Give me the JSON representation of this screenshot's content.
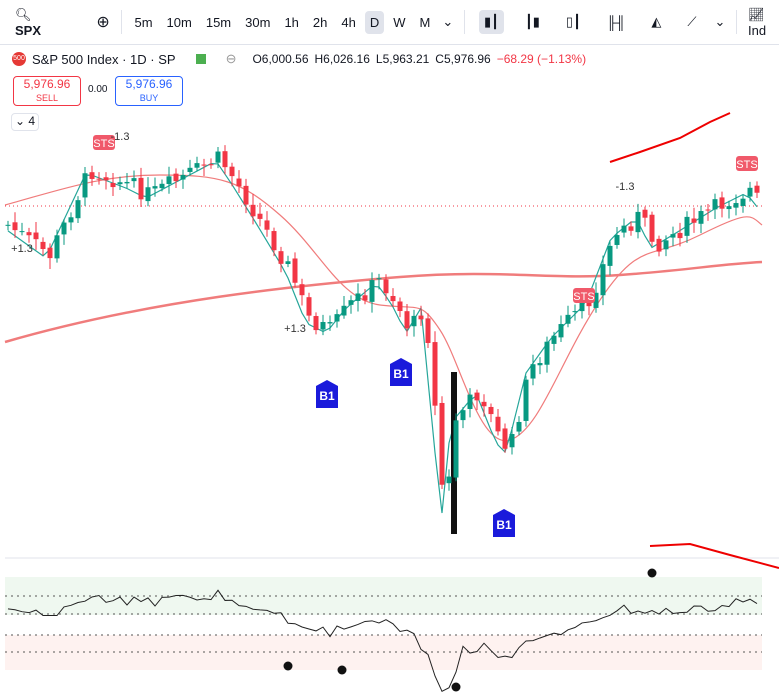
{
  "toolbar": {
    "symbol": "SPX",
    "intervals": [
      "5m",
      "10m",
      "15m",
      "30m",
      "1h",
      "2h",
      "4h",
      "D",
      "W",
      "M"
    ],
    "indicators": "Ind"
  },
  "legend": {
    "badge": "500",
    "title": "S&P 500 Index · 1D · SP",
    "open": "O6,000.56",
    "high": "H6,026.16",
    "low": "L5,963.21",
    "close": "C5,976.96",
    "change": "−68.29 (−1.13%)"
  },
  "trade": {
    "sell_price": "5,976.96",
    "sell": "SELL",
    "spread": "0.00",
    "buy_price": "5,976.96",
    "buy": "BUY"
  },
  "collapse": "4",
  "annotations": [
    {
      "text": "STS"
    },
    {
      "text": "-1.3"
    },
    {
      "text": "+1.3"
    },
    {
      "text": "+1.3"
    },
    {
      "text": "B1"
    },
    {
      "text": "B1"
    },
    {
      "text": "B1"
    },
    {
      "text": "STS"
    },
    {
      "text": "-1.3"
    },
    {
      "text": "STS"
    }
  ]
}
